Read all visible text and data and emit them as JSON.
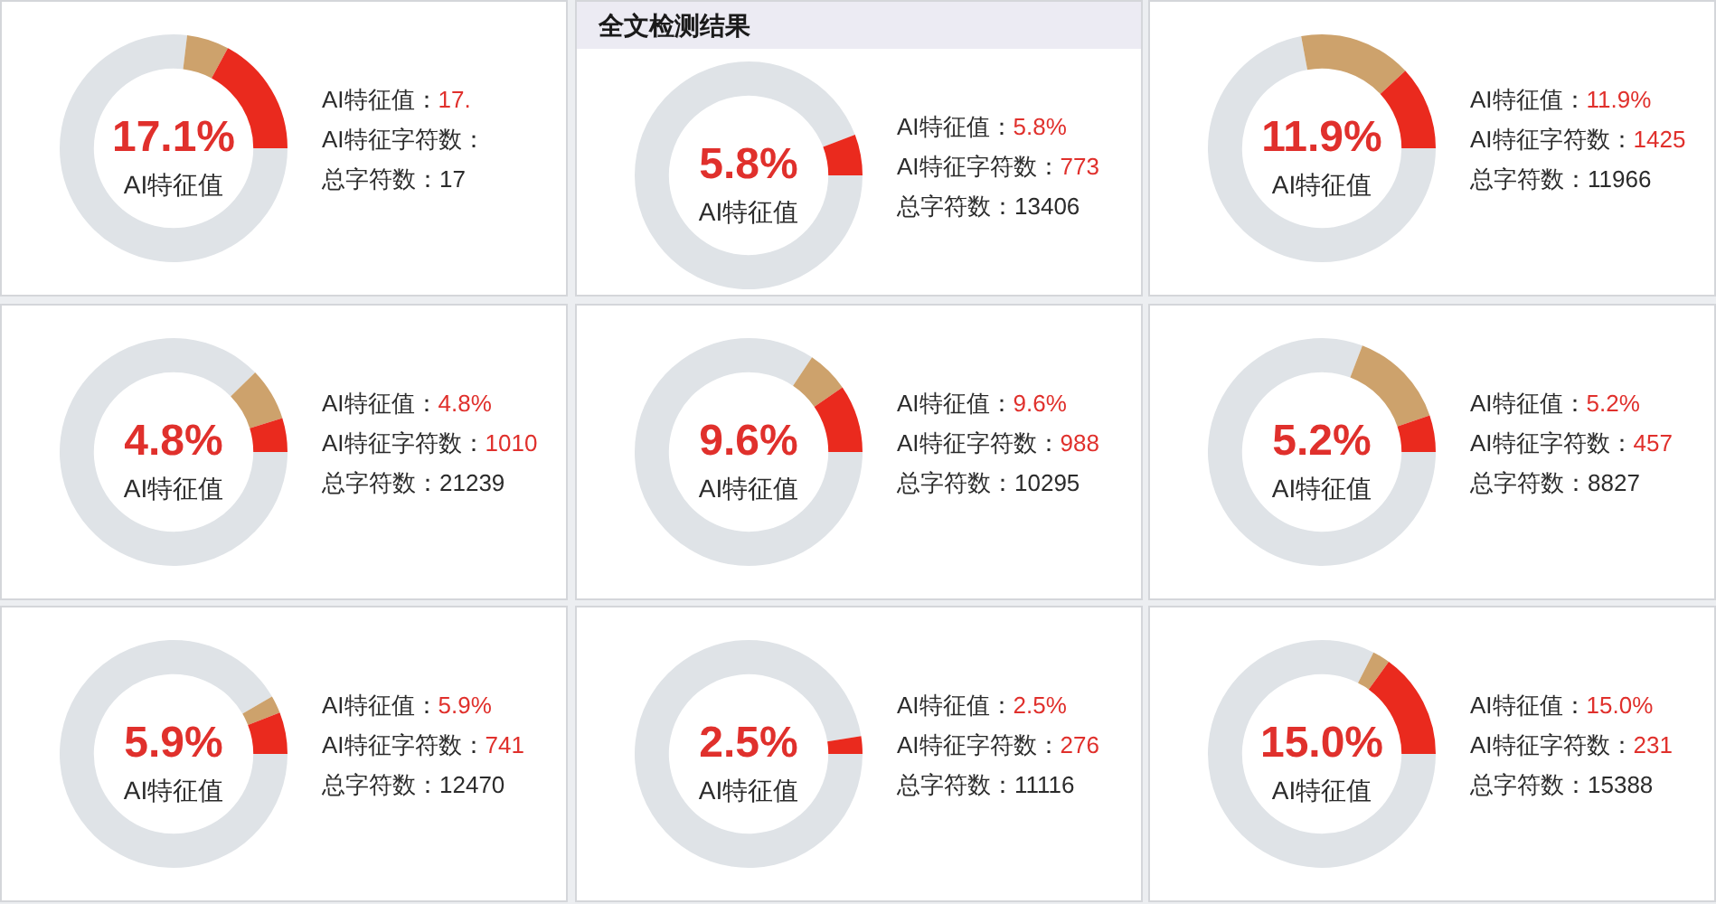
{
  "chart_data": [
    {
      "type": "donut",
      "categories": [
        null,
        null,
        null
      ],
      "values": [
        76.9,
        6,
        17.1
      ],
      "colors": [
        "#dfe3e7",
        "#cda26c",
        "#ea2a1e"
      ],
      "annotations": [
        "17.1%",
        "AI特征值",
        "AI特征值：17.",
        "AI特征字符数：",
        "总字符数：17"
      ]
    },
    {
      "type": "donut",
      "title": "全文检测结果",
      "categories": [
        null,
        null
      ],
      "values": [
        94.2,
        5.8
      ],
      "colors": [
        "#dfe3e7",
        "#ea2a1e"
      ],
      "annotations": [
        "5.8%",
        "AI特征值",
        "AI特征值：5.8%",
        "AI特征字符数：773",
        "总字符数：13406"
      ]
    },
    {
      "type": "donut",
      "categories": [
        null,
        null,
        null
      ],
      "values": [
        72.1,
        16,
        11.9
      ],
      "colors": [
        "#dfe3e7",
        "#cda26c",
        "#ea2a1e"
      ],
      "annotations": [
        "11.9%",
        "AI特征值",
        "AI特征值：11.9%",
        "AI特征字符数：1425",
        "总字符数：11966"
      ]
    },
    {
      "type": "donut",
      "categories": [
        null,
        null,
        null
      ],
      "values": [
        87.7,
        7.5,
        4.8
      ],
      "colors": [
        "#dfe3e7",
        "#cda26c",
        "#ea2a1e"
      ],
      "annotations": [
        "4.8%",
        "AI特征值",
        "AI特征值：4.8%",
        "AI特征字符数：1010",
        "总字符数：21239"
      ]
    },
    {
      "type": "donut",
      "categories": [
        null,
        null,
        null
      ],
      "values": [
        84.4,
        6,
        9.6
      ],
      "colors": [
        "#dfe3e7",
        "#cda26c",
        "#ea2a1e"
      ],
      "annotations": [
        "9.6%",
        "AI特征值",
        "AI特征值：9.6%",
        "AI特征字符数：988",
        "总字符数：10295"
      ]
    },
    {
      "type": "donut",
      "categories": [
        null,
        null,
        null
      ],
      "values": [
        80.8,
        14,
        5.2
      ],
      "colors": [
        "#dfe3e7",
        "#cda26c",
        "#ea2a1e"
      ],
      "annotations": [
        "5.2%",
        "AI特征值",
        "AI特征值：5.2%",
        "AI特征字符数：457",
        "总字符数：8827"
      ]
    },
    {
      "type": "donut",
      "categories": [
        null,
        null,
        null
      ],
      "values": [
        91.6,
        2.5,
        5.9
      ],
      "colors": [
        "#dfe3e7",
        "#cda26c",
        "#ea2a1e"
      ],
      "annotations": [
        "5.9%",
        "AI特征值",
        "AI特征值：5.9%",
        "AI特征字符数：741",
        "总字符数：12470"
      ]
    },
    {
      "type": "donut",
      "categories": [
        null,
        null
      ],
      "values": [
        97.5,
        2.5
      ],
      "colors": [
        "#dfe3e7",
        "#ea2a1e"
      ],
      "annotations": [
        "2.5%",
        "AI特征值",
        "AI特征值：2.5%",
        "AI特征字符数：276",
        "总字符数：11116"
      ]
    },
    {
      "type": "donut",
      "categories": [
        null,
        null,
        null
      ],
      "values": [
        82.5,
        2.5,
        15.0
      ],
      "colors": [
        "#dfe3e7",
        "#cda26c",
        "#ea2a1e"
      ],
      "annotations": [
        "15.0%",
        "AI特征值",
        "AI特征值：15.0%",
        "AI特征字符数：231",
        "总字符数：15388"
      ]
    }
  ]
}
